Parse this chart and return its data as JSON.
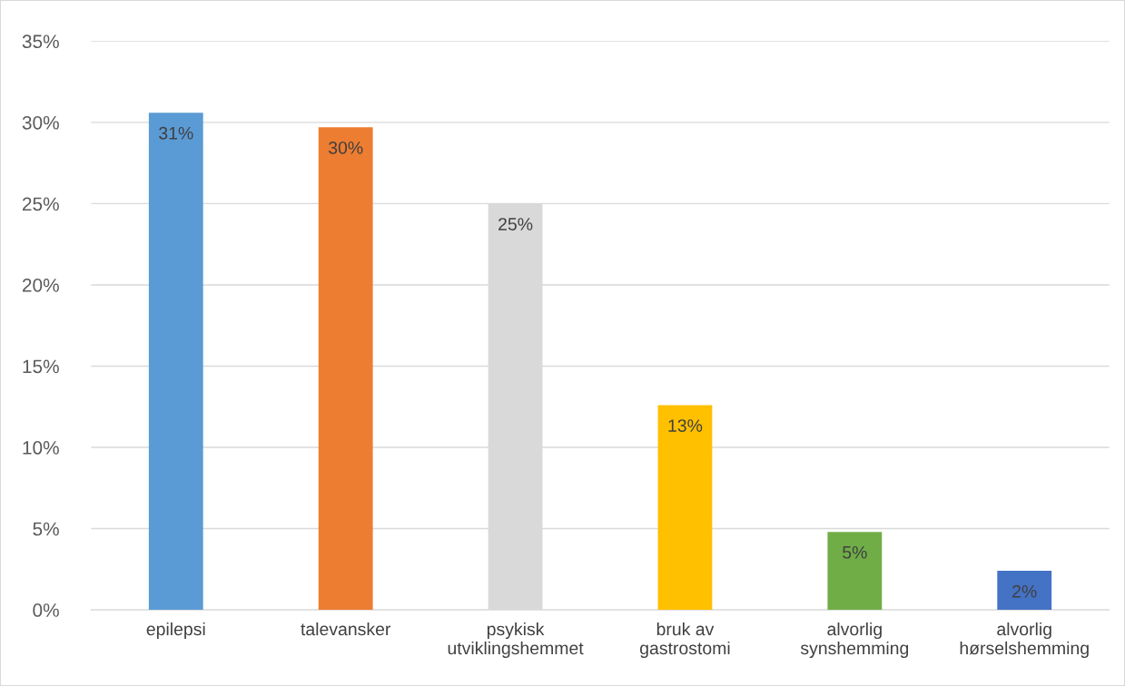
{
  "chart_data": {
    "type": "bar",
    "categories": [
      "epilepsi",
      "talevansker",
      "psykisk\nutviklingshemmet",
      "bruk av\ngastrostomi",
      "alvorlig\nsynshemming",
      "alvorlig\nhørselshemming"
    ],
    "values": [
      30.6,
      29.7,
      25.0,
      12.6,
      4.8,
      2.4
    ],
    "value_labels": [
      "31%",
      "30%",
      "25%",
      "13%",
      "5%",
      "2%"
    ],
    "colors": [
      "#5b9bd5",
      "#ed7d31",
      "#d9d9d9",
      "#ffc000",
      "#70ad47",
      "#4472c4"
    ],
    "ylim": [
      0,
      35
    ],
    "yticks": [
      {
        "value": 0,
        "label": "0%"
      },
      {
        "value": 5,
        "label": "5%"
      },
      {
        "value": 10,
        "label": "10%"
      },
      {
        "value": 15,
        "label": "15%"
      },
      {
        "value": 20,
        "label": "20%"
      },
      {
        "value": 25,
        "label": "25%"
      },
      {
        "value": 30,
        "label": "30%"
      },
      {
        "value": 35,
        "label": "35%"
      }
    ],
    "grid": "y"
  }
}
